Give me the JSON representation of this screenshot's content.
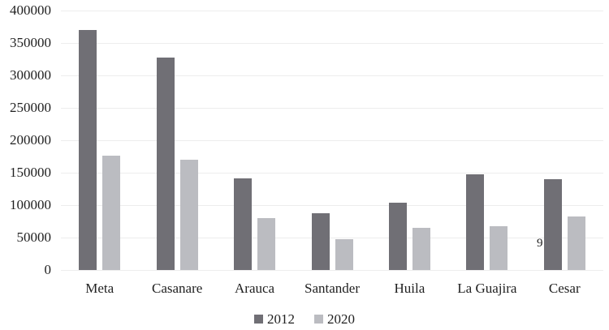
{
  "chart_data": {
    "type": "bar",
    "title": "",
    "categories": [
      "Meta",
      "Casanare",
      "Arauca",
      "Santander",
      "Huila",
      "La Guajira",
      "Cesar"
    ],
    "series": [
      {
        "name": "2012",
        "color": "#706f75",
        "values": [
          370000,
          327000,
          141000,
          88000,
          104000,
          147000,
          140000
        ]
      },
      {
        "name": "2020",
        "color": "#bbbcc1",
        "values": [
          176000,
          170000,
          80000,
          48000,
          65000,
          68000,
          83000
        ]
      }
    ],
    "ylim": [
      0,
      400000
    ],
    "ytick_step": 50000,
    "yticks": [
      "0",
      "50000",
      "100000",
      "150000",
      "200000",
      "250000",
      "300000",
      "350000",
      "400000"
    ],
    "grid": true,
    "gridline_color": "#ededed",
    "legend_position": "bottom",
    "background": "#ffffff",
    "text_color": "#1f1f1f",
    "annotations": [
      {
        "text": "9",
        "note": "stray data label partially hidden behind Cesar 2012 bar"
      }
    ]
  }
}
